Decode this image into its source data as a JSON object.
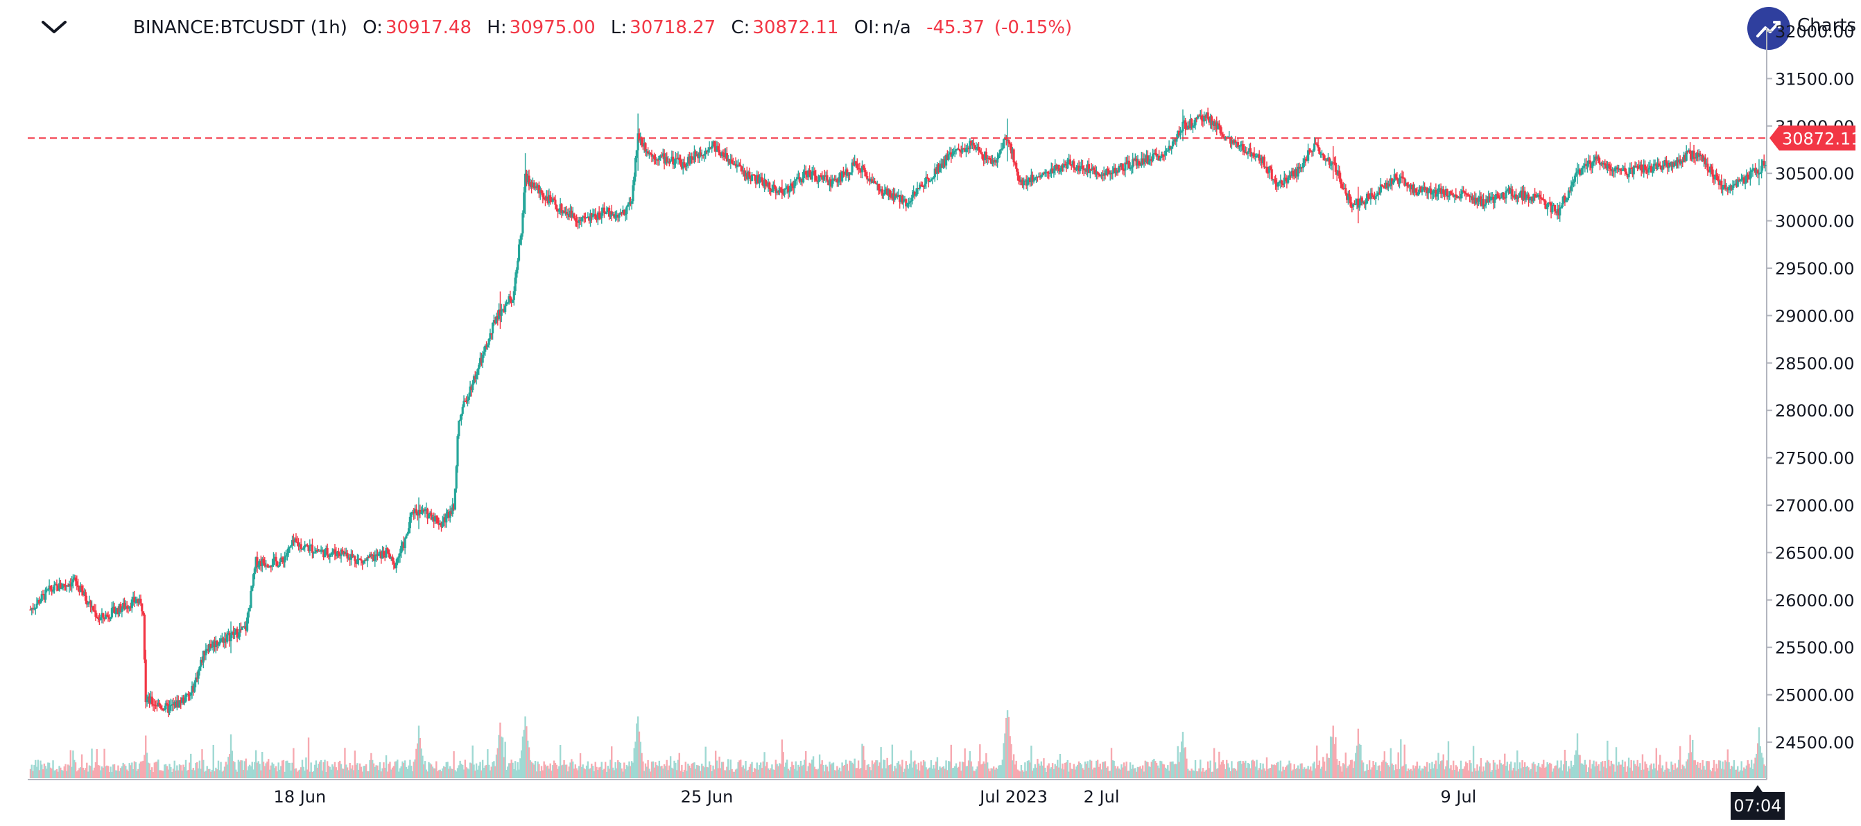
{
  "header": {
    "symbol": "BINANCE:BTCUSDT (1h)",
    "o_label": "O:",
    "o_value": "30917.48",
    "h_label": "H:",
    "h_value": "30975.00",
    "l_label": "L:",
    "l_value": "30718.27",
    "c_label": "C:",
    "c_value": "30872.11",
    "oi_label": "OI:",
    "oi_value": "n/a",
    "change": "-45.37",
    "change_pct": "(-0.15%)",
    "brand": "Charts"
  },
  "colors": {
    "up": "#26a69a",
    "down": "#f23645",
    "logo": "#2f3f9e",
    "grid": "#e0e3eb"
  },
  "chart_data": {
    "type": "candlestick",
    "interval": "1h",
    "ylim": [
      24200,
      32000
    ],
    "y_ticks": [
      "24500.00",
      "25000.00",
      "25500.00",
      "26000.00",
      "26500.00",
      "27000.00",
      "27500.00",
      "28000.00",
      "28500.00",
      "29000.00",
      "29500.00",
      "30000.00",
      "30500.00",
      "31000.00",
      "31500.00",
      "32000.00"
    ],
    "x_ticks": [
      "18 Jun",
      "25 Jun",
      "Jul 2023",
      "2 Jul",
      "9 Jul"
    ],
    "last_price": "30872.11",
    "crosshair_time": "07:04",
    "price_path": [
      [
        0,
        25900
      ],
      [
        15,
        26100
      ],
      [
        35,
        26200
      ],
      [
        55,
        25800
      ],
      [
        85,
        26000
      ],
      [
        90,
        25900
      ],
      [
        92,
        24950
      ],
      [
        110,
        24850
      ],
      [
        128,
        25000
      ],
      [
        140,
        25500
      ],
      [
        172,
        25700
      ],
      [
        180,
        26400
      ],
      [
        200,
        26400
      ],
      [
        210,
        26600
      ],
      [
        235,
        26500
      ],
      [
        250,
        26500
      ],
      [
        265,
        26400
      ],
      [
        285,
        26500
      ],
      [
        290,
        26350
      ],
      [
        300,
        26650
      ],
      [
        305,
        26950
      ],
      [
        320,
        26900
      ],
      [
        328,
        26800
      ],
      [
        338,
        27000
      ],
      [
        342,
        27900
      ],
      [
        350,
        28200
      ],
      [
        365,
        28700
      ],
      [
        372,
        29000
      ],
      [
        385,
        29200
      ],
      [
        392,
        29900
      ],
      [
        395,
        30450
      ],
      [
        420,
        30150
      ],
      [
        440,
        30000
      ],
      [
        460,
        30100
      ],
      [
        470,
        30050
      ],
      [
        480,
        30200
      ],
      [
        485,
        30900
      ],
      [
        495,
        30700
      ],
      [
        520,
        30600
      ],
      [
        545,
        30800
      ],
      [
        570,
        30500
      ],
      [
        600,
        30300
      ],
      [
        620,
        30500
      ],
      [
        640,
        30400
      ],
      [
        660,
        30600
      ],
      [
        680,
        30300
      ],
      [
        700,
        30200
      ],
      [
        720,
        30500
      ],
      [
        735,
        30700
      ],
      [
        750,
        30800
      ],
      [
        770,
        30600
      ],
      [
        780,
        30900
      ],
      [
        790,
        30400
      ],
      [
        810,
        30500
      ],
      [
        830,
        30600
      ],
      [
        860,
        30500
      ],
      [
        880,
        30600
      ],
      [
        905,
        30700
      ],
      [
        920,
        31000
      ],
      [
        940,
        31100
      ],
      [
        960,
        30800
      ],
      [
        980,
        30700
      ],
      [
        995,
        30400
      ],
      [
        1010,
        30500
      ],
      [
        1025,
        30800
      ],
      [
        1040,
        30600
      ],
      [
        1055,
        30150
      ],
      [
        1075,
        30300
      ],
      [
        1090,
        30450
      ],
      [
        1110,
        30300
      ],
      [
        1135,
        30300
      ],
      [
        1160,
        30200
      ],
      [
        1180,
        30300
      ],
      [
        1200,
        30250
      ],
      [
        1220,
        30100
      ],
      [
        1235,
        30500
      ],
      [
        1250,
        30650
      ],
      [
        1270,
        30500
      ],
      [
        1290,
        30550
      ],
      [
        1310,
        30600
      ],
      [
        1325,
        30700
      ],
      [
        1335,
        30650
      ],
      [
        1350,
        30350
      ],
      [
        1365,
        30400
      ],
      [
        1385,
        30600
      ]
    ],
    "volume_spikes": [
      [
        92,
        0.38
      ],
      [
        160,
        0.42
      ],
      [
        310,
        0.7
      ],
      [
        375,
        0.8
      ],
      [
        395,
        1.0
      ],
      [
        485,
        1.0
      ],
      [
        600,
        0.25
      ],
      [
        780,
        1.2
      ],
      [
        920,
        0.5
      ],
      [
        1040,
        0.7
      ],
      [
        1060,
        0.6
      ],
      [
        1235,
        0.45
      ],
      [
        1325,
        0.4
      ],
      [
        1380,
        0.65
      ]
    ],
    "x_tick_pos": [
      215,
      540,
      785,
      855,
      1140
    ]
  }
}
